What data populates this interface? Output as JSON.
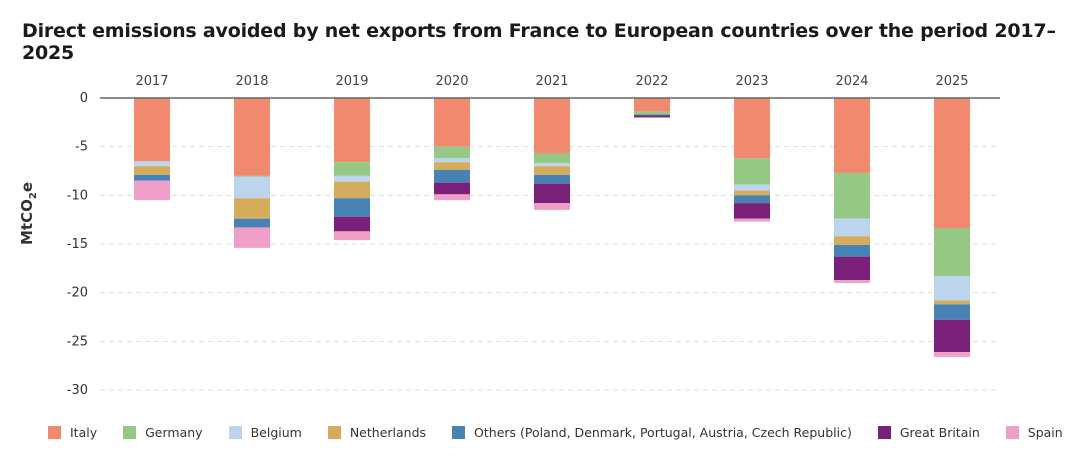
{
  "chart_data": {
    "type": "bar",
    "stacked": true,
    "title": "Direct emissions avoided by net exports from France to European countries over the period 2017–2025",
    "ylabel": "MtCO2e",
    "ylabel_main": "MtCO",
    "ylabel_sub": "2",
    "ylabel_suffix": "e",
    "ylim": [
      -30,
      0
    ],
    "yticks": [
      0,
      -5,
      -10,
      -15,
      -20,
      -25,
      -30
    ],
    "grid": true,
    "legend_position": "bottom",
    "categories": [
      "2017",
      "2018",
      "2019",
      "2020",
      "2021",
      "2022",
      "2023",
      "2024",
      "2025"
    ],
    "series": [
      {
        "name": "Italy",
        "color": "#F0896E",
        "values": [
          -6.5,
          -8.0,
          -6.6,
          -5.0,
          -5.7,
          -1.4,
          -6.2,
          -7.7,
          -13.4
        ]
      },
      {
        "name": "Germany",
        "color": "#96C885",
        "values": [
          0,
          -0.1,
          -1.4,
          -1.2,
          -1.0,
          -0.3,
          -2.7,
          -4.7,
          -4.9
        ]
      },
      {
        "name": "Belgium",
        "color": "#BCD4EE",
        "values": [
          -0.5,
          -2.2,
          -0.6,
          -0.4,
          -0.3,
          0,
          -0.6,
          -1.8,
          -2.5
        ]
      },
      {
        "name": "Netherlands",
        "color": "#D4AC5C",
        "values": [
          -0.9,
          -2.1,
          -1.7,
          -0.8,
          -0.9,
          0,
          -0.5,
          -0.9,
          -0.4
        ]
      },
      {
        "name": "Others (Poland, Denmark, Portugal, Austria, Czech Republic)",
        "color": "#4682B4",
        "values": [
          -0.6,
          -0.9,
          -1.9,
          -1.3,
          -0.9,
          -0.1,
          -0.8,
          -1.2,
          -1.6
        ]
      },
      {
        "name": "Great Britain",
        "color": "#7B2079",
        "values": [
          0,
          0,
          -1.5,
          -1.2,
          -2.0,
          -0.2,
          -1.6,
          -2.4,
          -3.3
        ]
      },
      {
        "name": "Spain",
        "color": "#F0A0C8",
        "values": [
          -2.0,
          -2.1,
          -0.9,
          -0.6,
          -0.7,
          0,
          -0.3,
          -0.3,
          -0.5
        ]
      }
    ]
  }
}
